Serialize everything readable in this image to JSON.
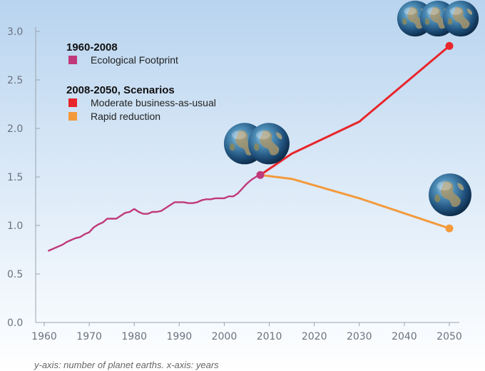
{
  "chart_data": {
    "type": "line",
    "title": "",
    "xlabel": "",
    "ylabel": "",
    "xlim": [
      1960,
      2050
    ],
    "ylim": [
      0,
      3
    ],
    "x_ticks": [
      1960,
      1970,
      1980,
      1990,
      2000,
      2010,
      2020,
      2030,
      2040,
      2050
    ],
    "y_ticks": [
      "0.0",
      "0.5",
      "1.0",
      "1.5",
      "2.0",
      "2.5",
      "3.0"
    ],
    "grid": false,
    "legend": {
      "placement": "top-left",
      "groups": [
        {
          "heading": "1960-2008",
          "entries": [
            {
              "label": "Ecological Footprint",
              "color": "#c0397a"
            }
          ]
        },
        {
          "heading": "2008-2050, Scenarios",
          "entries": [
            {
              "label": "Moderate business-as-usual",
              "color": "#e8262b"
            },
            {
              "label": "Rapid reduction",
              "color": "#f39a3c"
            }
          ]
        }
      ]
    },
    "series": [
      {
        "name": "Ecological Footprint",
        "color": "#c0397a",
        "x": [
          1961,
          1962,
          1963,
          1964,
          1965,
          1966,
          1967,
          1968,
          1969,
          1970,
          1971,
          1972,
          1973,
          1974,
          1975,
          1976,
          1977,
          1978,
          1979,
          1980,
          1981,
          1982,
          1983,
          1984,
          1985,
          1986,
          1987,
          1988,
          1989,
          1990,
          1991,
          1992,
          1993,
          1994,
          1995,
          1996,
          1997,
          1998,
          1999,
          2000,
          2001,
          2002,
          2003,
          2004,
          2005,
          2006,
          2007,
          2008
        ],
        "y": [
          0.74,
          0.76,
          0.78,
          0.8,
          0.83,
          0.85,
          0.87,
          0.88,
          0.91,
          0.93,
          0.98,
          1.01,
          1.03,
          1.07,
          1.07,
          1.07,
          1.1,
          1.13,
          1.14,
          1.17,
          1.14,
          1.12,
          1.12,
          1.14,
          1.14,
          1.15,
          1.18,
          1.21,
          1.24,
          1.24,
          1.24,
          1.23,
          1.23,
          1.24,
          1.26,
          1.27,
          1.27,
          1.28,
          1.28,
          1.28,
          1.3,
          1.3,
          1.33,
          1.38,
          1.43,
          1.47,
          1.5,
          1.52
        ],
        "end_marker": true
      },
      {
        "name": "Moderate business-as-usual",
        "color": "#e8262b",
        "x": [
          2008,
          2015,
          2030,
          2050
        ],
        "y": [
          1.52,
          1.74,
          2.07,
          2.85
        ],
        "end_marker": true
      },
      {
        "name": "Rapid reduction",
        "color": "#f39a3c",
        "x": [
          2008,
          2015,
          2030,
          2050
        ],
        "y": [
          1.52,
          1.48,
          1.28,
          0.97
        ],
        "end_marker": true
      }
    ],
    "earth_icons": [
      {
        "label": "earth-icon",
        "count": 2,
        "near_x": 2008,
        "near_y": 1.52
      },
      {
        "label": "earth-icon",
        "count": 3,
        "near_x": 2050,
        "near_y": 2.85
      },
      {
        "label": "earth-icon",
        "count": 1,
        "near_x": 2050,
        "near_y": 0.97
      }
    ],
    "caption": "y-axis: number of planet earths. x-axis: years"
  }
}
